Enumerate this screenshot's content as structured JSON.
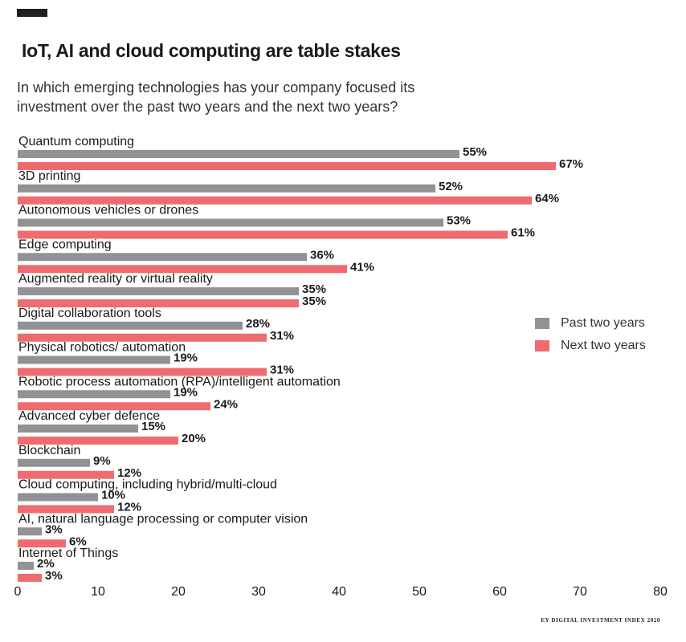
{
  "header": {
    "title": "IoT, AI and cloud computing are table stakes",
    "subtitle": "In which emerging technologies has your company focused its investment over the past two years and the next two years?"
  },
  "source": "EY DIGITAL INVESTMENT INDEX 2020",
  "colors": {
    "past": "#929296",
    "next": "#f06b6f",
    "text": "#1a1a1a"
  },
  "chart_data": {
    "type": "bar",
    "orientation": "horizontal",
    "title": "IoT, AI and cloud computing are table stakes",
    "xlabel": "",
    "ylabel": "",
    "xlim": [
      0,
      80
    ],
    "xticks": [
      0,
      10,
      20,
      30,
      40,
      50,
      60,
      70,
      80
    ],
    "grid": false,
    "legend_position": "right",
    "value_suffix": "%",
    "categories": [
      "Quantum computing",
      "3D printing",
      "Autonomous vehicles or drones",
      "Edge computing",
      "Augmented reality or virtual reality",
      "Digital collaboration tools",
      "Physical robotics/ automation",
      "Robotic process automation (RPA)/intelligent automation",
      "Advanced cyber defence",
      "Blockchain",
      "Cloud computing, including hybrid/multi-cloud",
      "AI, natural language processing or computer vision",
      "Internet of Things"
    ],
    "series": [
      {
        "name": "Past two years",
        "color": "#929296",
        "values": [
          55,
          52,
          53,
          36,
          35,
          28,
          19,
          19,
          15,
          9,
          10,
          3,
          2
        ]
      },
      {
        "name": "Next two years",
        "color": "#f06b6f",
        "values": [
          67,
          64,
          61,
          41,
          35,
          31,
          31,
          24,
          20,
          12,
          12,
          6,
          3
        ]
      }
    ]
  }
}
